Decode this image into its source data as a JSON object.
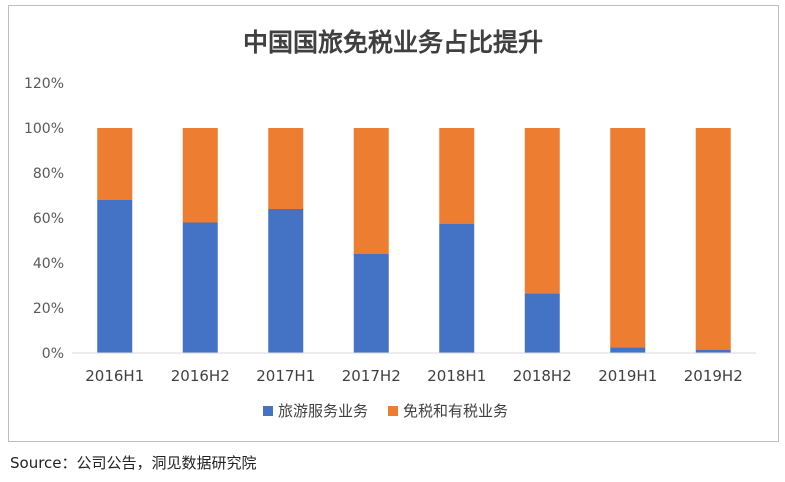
{
  "chart_data": {
    "type": "bar",
    "stacked": true,
    "title": "中国国旅免税业务占比提升",
    "categories": [
      "2016H1",
      "2016H2",
      "2017H1",
      "2017H2",
      "2018H1",
      "2018H2",
      "2019H1",
      "2019H2"
    ],
    "series": [
      {
        "name": "旅游服务业务",
        "color": "#4472C4",
        "values": [
          68,
          58,
          64,
          44,
          57.5,
          26.5,
          2.5,
          1.5
        ]
      },
      {
        "name": "免税和有税业务",
        "color": "#ED7D31",
        "values": [
          32,
          42,
          36,
          56,
          42.5,
          73.5,
          97.5,
          98.5
        ]
      }
    ],
    "ylim": [
      0,
      120
    ],
    "yticks": [
      "0%",
      "20%",
      "40%",
      "60%",
      "80%",
      "100%",
      "120%"
    ],
    "ytick_values": [
      0,
      20,
      40,
      60,
      80,
      100,
      120
    ],
    "legend_position": "bottom",
    "grid": false
  },
  "source": "Source：公司公告，洞见数据研究院"
}
